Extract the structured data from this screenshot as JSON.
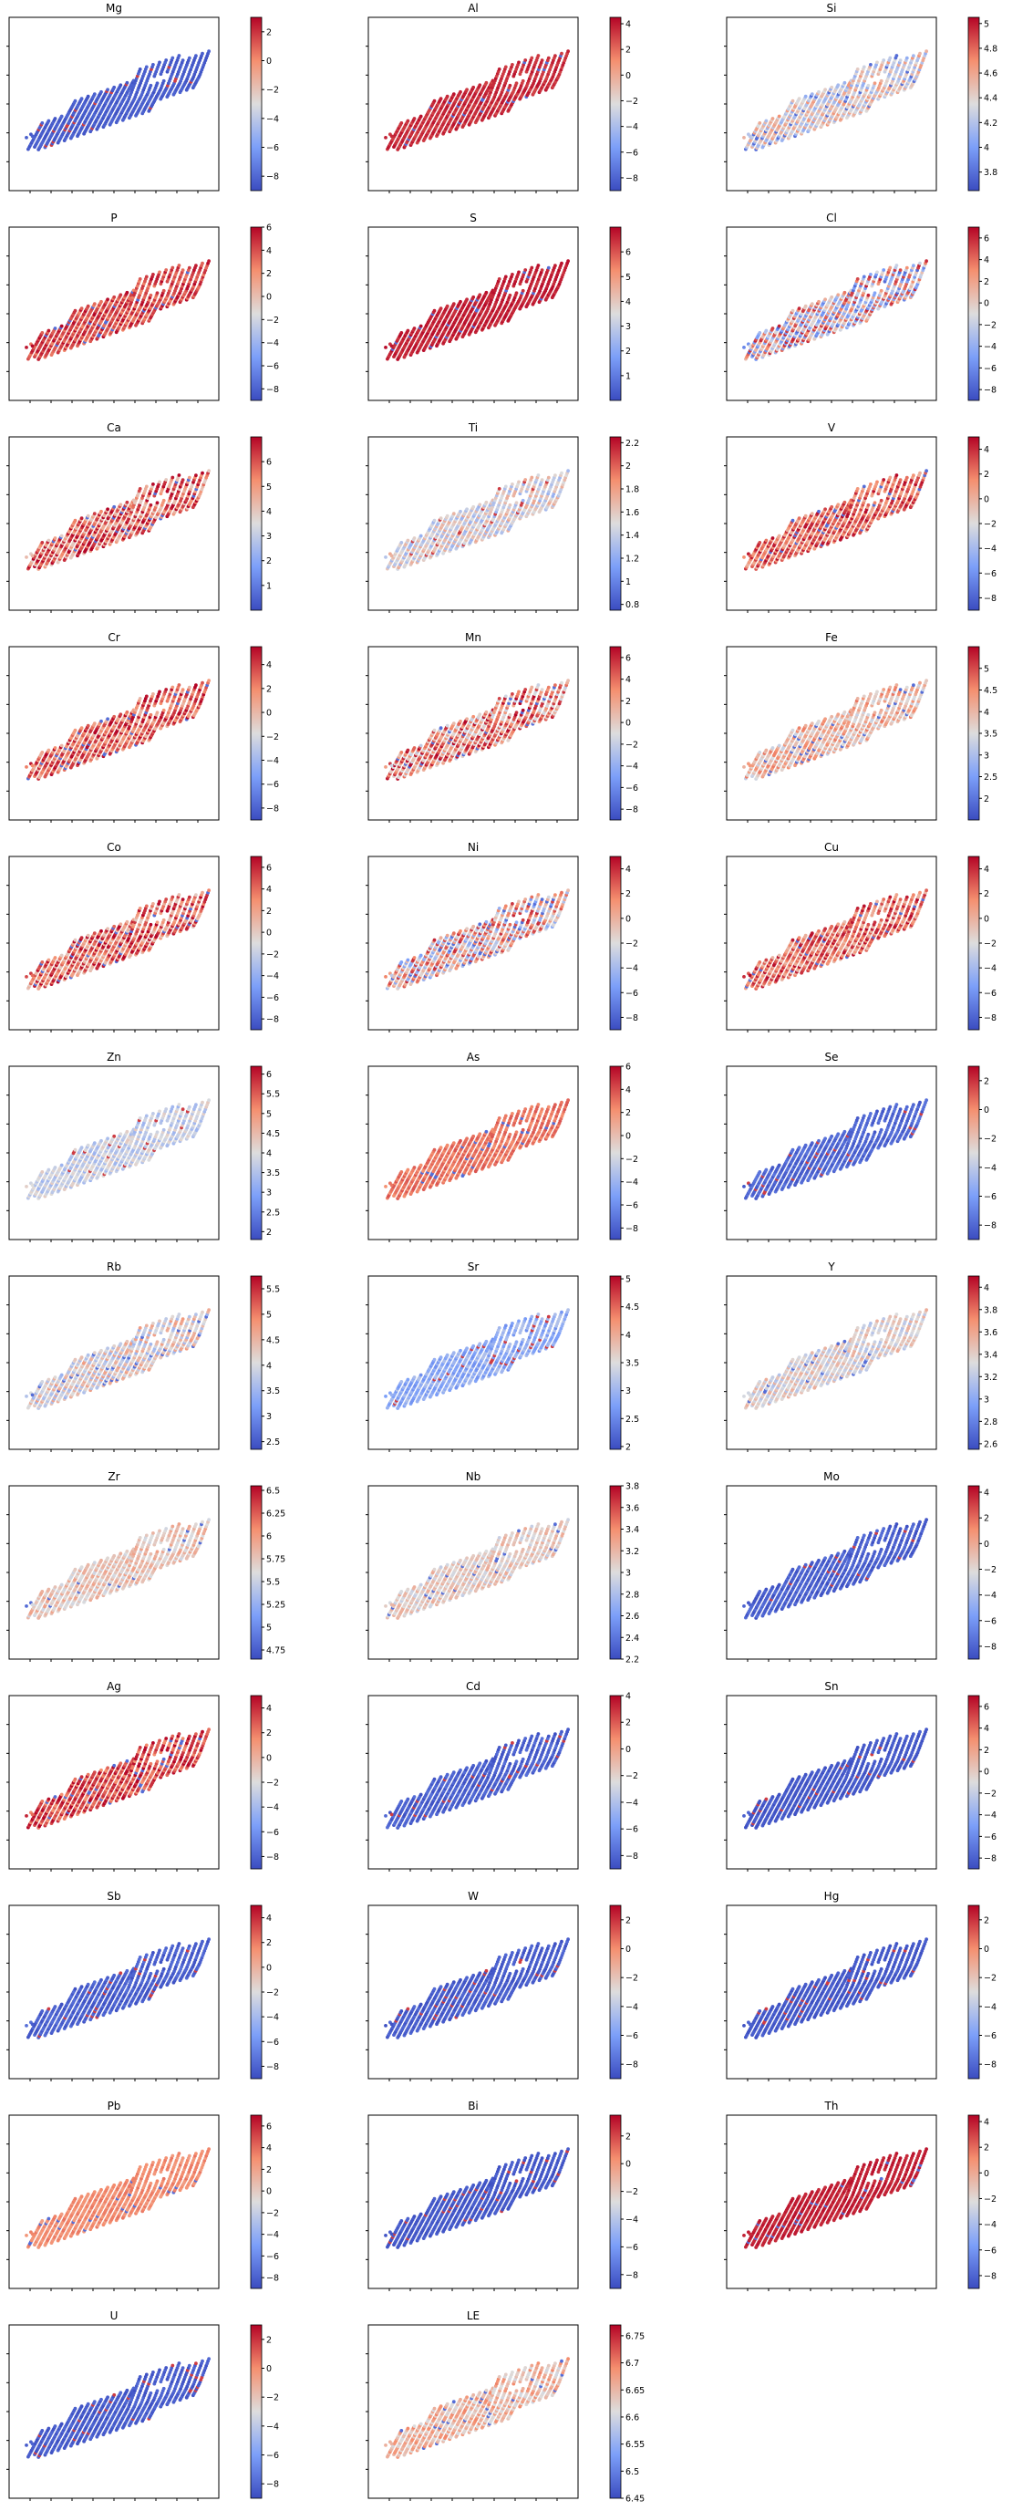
{
  "chart_data": [
    {
      "type": "scatter",
      "title": "Mg",
      "colorbar": {
        "min": -9.0,
        "max": 3.0,
        "ticks": [
          -8,
          -6,
          -4,
          -2,
          0,
          2
        ]
      },
      "value_level": 0.05,
      "value_spread": 0.03,
      "colormap": "coolwarm"
    },
    {
      "type": "scatter",
      "title": "Al",
      "colorbar": {
        "min": -9.0,
        "max": 4.5,
        "ticks": [
          -8,
          -6,
          -4,
          -2,
          0,
          2,
          4
        ]
      },
      "value_level": 0.93,
      "value_spread": 0.05,
      "colormap": "coolwarm"
    },
    {
      "type": "scatter",
      "title": "Si",
      "colorbar": {
        "min": 3.65,
        "max": 5.05,
        "ticks": [
          3.8,
          4.0,
          4.2,
          4.4,
          4.6,
          4.8,
          5.0
        ]
      },
      "value_level": 0.52,
      "value_spread": 0.22,
      "colormap": "coolwarm"
    },
    {
      "type": "scatter",
      "title": "P",
      "colorbar": {
        "min": -9.0,
        "max": 6.0,
        "ticks": [
          -8,
          -6,
          -4,
          -2,
          0,
          2,
          4,
          6
        ]
      },
      "value_level": 0.88,
      "value_spread": 0.12,
      "colormap": "coolwarm"
    },
    {
      "type": "scatter",
      "title": "S",
      "colorbar": {
        "min": 0.0,
        "max": 7.0,
        "ticks": [
          1,
          2,
          3,
          4,
          5,
          6
        ]
      },
      "value_level": 0.95,
      "value_spread": 0.04,
      "colormap": "coolwarm"
    },
    {
      "type": "scatter",
      "title": "Cl",
      "colorbar": {
        "min": -9.0,
        "max": 7.0,
        "ticks": [
          -8,
          -6,
          -4,
          -2,
          0,
          2,
          4,
          6
        ]
      },
      "value_level": 0.55,
      "value_spread": 0.4,
      "colormap": "coolwarm"
    },
    {
      "type": "scatter",
      "title": "Ca",
      "colorbar": {
        "min": 0.0,
        "max": 7.0,
        "ticks": [
          1,
          2,
          3,
          4,
          5,
          6
        ]
      },
      "value_level": 0.8,
      "value_spread": 0.25,
      "colormap": "coolwarm"
    },
    {
      "type": "scatter",
      "title": "Ti",
      "colorbar": {
        "min": 0.75,
        "max": 2.25,
        "ticks": [
          0.8,
          1.0,
          1.2,
          1.4,
          1.6,
          1.8,
          2.0,
          2.2
        ]
      },
      "value_level": 0.5,
      "value_spread": 0.18,
      "colormap": "coolwarm"
    },
    {
      "type": "scatter",
      "title": "V",
      "colorbar": {
        "min": -9.0,
        "max": 5.0,
        "ticks": [
          -8,
          -6,
          -4,
          -2,
          0,
          2,
          4
        ]
      },
      "value_level": 0.82,
      "value_spread": 0.18,
      "colormap": "coolwarm"
    },
    {
      "type": "scatter",
      "title": "Cr",
      "colorbar": {
        "min": -9.0,
        "max": 5.5,
        "ticks": [
          -8,
          -6,
          -4,
          -2,
          0,
          2,
          4
        ]
      },
      "value_level": 0.82,
      "value_spread": 0.2,
      "colormap": "coolwarm"
    },
    {
      "type": "scatter",
      "title": "Mn",
      "colorbar": {
        "min": -9.0,
        "max": 7.0,
        "ticks": [
          -8,
          -6,
          -4,
          -2,
          0,
          2,
          4,
          6
        ]
      },
      "value_level": 0.72,
      "value_spread": 0.3,
      "colormap": "coolwarm"
    },
    {
      "type": "scatter",
      "title": "Fe",
      "colorbar": {
        "min": 1.5,
        "max": 5.5,
        "ticks": [
          2.0,
          2.5,
          3.0,
          3.5,
          4.0,
          4.5,
          5.0
        ]
      },
      "value_level": 0.62,
      "value_spread": 0.18,
      "colormap": "coolwarm"
    },
    {
      "type": "scatter",
      "title": "Co",
      "colorbar": {
        "min": -9.0,
        "max": 7.0,
        "ticks": [
          -8,
          -6,
          -4,
          -2,
          0,
          2,
          4,
          6
        ]
      },
      "value_level": 0.8,
      "value_spread": 0.25,
      "colormap": "coolwarm"
    },
    {
      "type": "scatter",
      "title": "Ni",
      "colorbar": {
        "min": -9.0,
        "max": 5.0,
        "ticks": [
          -8,
          -6,
          -4,
          -2,
          0,
          2,
          4
        ]
      },
      "value_level": 0.6,
      "value_spread": 0.35,
      "colormap": "coolwarm"
    },
    {
      "type": "scatter",
      "title": "Cu",
      "colorbar": {
        "min": -9.0,
        "max": 5.0,
        "ticks": [
          -8,
          -6,
          -4,
          -2,
          0,
          2,
          4
        ]
      },
      "value_level": 0.8,
      "value_spread": 0.2,
      "colormap": "coolwarm"
    },
    {
      "type": "scatter",
      "title": "Zn",
      "colorbar": {
        "min": 1.8,
        "max": 6.2,
        "ticks": [
          2.0,
          2.5,
          3.0,
          3.5,
          4.0,
          4.5,
          5.0,
          5.5,
          6.0
        ]
      },
      "value_level": 0.45,
      "value_spread": 0.12,
      "colormap": "coolwarm"
    },
    {
      "type": "scatter",
      "title": "As",
      "colorbar": {
        "min": -9.0,
        "max": 6.0,
        "ticks": [
          -8,
          -6,
          -4,
          -2,
          0,
          2,
          4,
          6
        ]
      },
      "value_level": 0.8,
      "value_spread": 0.06,
      "colormap": "coolwarm"
    },
    {
      "type": "scatter",
      "title": "Se",
      "colorbar": {
        "min": -9.0,
        "max": 3.0,
        "ticks": [
          -8,
          -6,
          -4,
          -2,
          0,
          2
        ]
      },
      "value_level": 0.08,
      "value_spread": 0.05,
      "colormap": "coolwarm"
    },
    {
      "type": "scatter",
      "title": "Rb",
      "colorbar": {
        "min": 2.35,
        "max": 5.75,
        "ticks": [
          2.5,
          3.0,
          3.5,
          4.0,
          4.5,
          5.0,
          5.5
        ]
      },
      "value_level": 0.52,
      "value_spread": 0.2,
      "colormap": "coolwarm"
    },
    {
      "type": "scatter",
      "title": "Sr",
      "colorbar": {
        "min": 1.95,
        "max": 5.05,
        "ticks": [
          2.0,
          2.5,
          3.0,
          3.5,
          4.0,
          4.5,
          5.0
        ]
      },
      "value_level": 0.3,
      "value_spread": 0.1,
      "colormap": "coolwarm"
    },
    {
      "type": "scatter",
      "title": "Y",
      "colorbar": {
        "min": 2.55,
        "max": 4.1,
        "ticks": [
          2.6,
          2.8,
          3.0,
          3.2,
          3.4,
          3.6,
          3.8,
          4.0
        ]
      },
      "value_level": 0.52,
      "value_spread": 0.14,
      "colormap": "coolwarm"
    },
    {
      "type": "scatter",
      "title": "Zr",
      "colorbar": {
        "min": 4.65,
        "max": 6.55,
        "ticks": [
          4.75,
          5.0,
          5.25,
          5.5,
          5.75,
          6.0,
          6.25,
          6.5
        ]
      },
      "value_level": 0.58,
      "value_spread": 0.12,
      "colormap": "coolwarm"
    },
    {
      "type": "scatter",
      "title": "Nb",
      "colorbar": {
        "min": 2.2,
        "max": 3.8,
        "ticks": [
          2.2,
          2.4,
          2.6,
          2.8,
          3.0,
          3.2,
          3.4,
          3.6,
          3.8
        ]
      },
      "value_level": 0.55,
      "value_spread": 0.12,
      "colormap": "coolwarm"
    },
    {
      "type": "scatter",
      "title": "Mo",
      "colorbar": {
        "min": -9.0,
        "max": 4.5,
        "ticks": [
          -8,
          -6,
          -4,
          -2,
          0,
          2,
          4
        ]
      },
      "value_level": 0.06,
      "value_spread": 0.05,
      "colormap": "coolwarm"
    },
    {
      "type": "scatter",
      "title": "Ag",
      "colorbar": {
        "min": -9.0,
        "max": 5.0,
        "ticks": [
          -8,
          -6,
          -4,
          -2,
          0,
          2,
          4
        ]
      },
      "value_level": 0.88,
      "value_spread": 0.15,
      "colormap": "coolwarm"
    },
    {
      "type": "scatter",
      "title": "Cd",
      "colorbar": {
        "min": -9.0,
        "max": 4.0,
        "ticks": [
          -8,
          -6,
          -4,
          -2,
          0,
          2,
          4
        ]
      },
      "value_level": 0.06,
      "value_spread": 0.05,
      "colormap": "coolwarm"
    },
    {
      "type": "scatter",
      "title": "Sn",
      "colorbar": {
        "min": -9.0,
        "max": 7.0,
        "ticks": [
          -8,
          -6,
          -4,
          -2,
          0,
          2,
          4,
          6
        ]
      },
      "value_level": 0.04,
      "value_spread": 0.03,
      "colormap": "coolwarm"
    },
    {
      "type": "scatter",
      "title": "Sb",
      "colorbar": {
        "min": -9.0,
        "max": 5.0,
        "ticks": [
          -8,
          -6,
          -4,
          -2,
          0,
          2,
          4
        ]
      },
      "value_level": 0.06,
      "value_spread": 0.05,
      "colormap": "coolwarm"
    },
    {
      "type": "scatter",
      "title": "W",
      "colorbar": {
        "min": -9.0,
        "max": 3.0,
        "ticks": [
          -8,
          -6,
          -4,
          -2,
          0,
          2
        ]
      },
      "value_level": 0.05,
      "value_spread": 0.04,
      "colormap": "coolwarm"
    },
    {
      "type": "scatter",
      "title": "Hg",
      "colorbar": {
        "min": -9.0,
        "max": 3.0,
        "ticks": [
          -8,
          -6,
          -4,
          -2,
          0,
          2
        ]
      },
      "value_level": 0.04,
      "value_spread": 0.03,
      "colormap": "coolwarm"
    },
    {
      "type": "scatter",
      "title": "Pb",
      "colorbar": {
        "min": -9.0,
        "max": 7.0,
        "ticks": [
          -8,
          -6,
          -4,
          -2,
          0,
          2,
          4,
          6
        ]
      },
      "value_level": 0.75,
      "value_spread": 0.05,
      "colormap": "coolwarm"
    },
    {
      "type": "scatter",
      "title": "Bi",
      "colorbar": {
        "min": -9.0,
        "max": 3.5,
        "ticks": [
          -8,
          -6,
          -4,
          -2,
          0,
          2
        ]
      },
      "value_level": 0.04,
      "value_spread": 0.03,
      "colormap": "coolwarm"
    },
    {
      "type": "scatter",
      "title": "Th",
      "colorbar": {
        "min": -9.0,
        "max": 4.5,
        "ticks": [
          -8,
          -6,
          -4,
          -2,
          0,
          2,
          4
        ]
      },
      "value_level": 0.95,
      "value_spread": 0.03,
      "colormap": "coolwarm"
    },
    {
      "type": "scatter",
      "title": "U",
      "colorbar": {
        "min": -9.0,
        "max": 3.0,
        "ticks": [
          -8,
          -6,
          -4,
          -2,
          0,
          2
        ]
      },
      "value_level": 0.05,
      "value_spread": 0.04,
      "colormap": "coolwarm"
    },
    {
      "type": "scatter",
      "title": "LE",
      "colorbar": {
        "min": 6.45,
        "max": 6.77,
        "ticks": [
          6.45,
          6.5,
          6.55,
          6.6,
          6.65,
          6.7,
          6.75
        ]
      },
      "value_level": 0.62,
      "value_spread": 0.15,
      "colormap": "coolwarm"
    }
  ]
}
